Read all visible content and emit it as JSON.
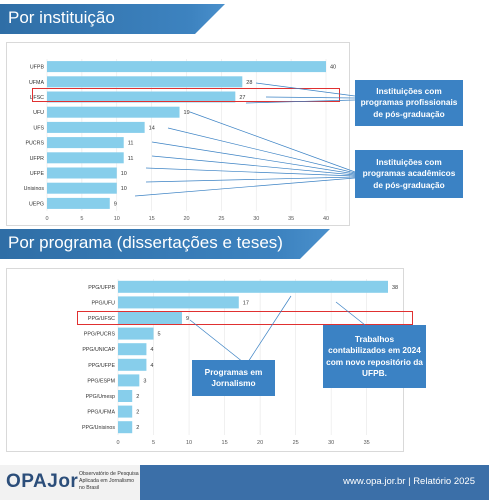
{
  "banner1": {
    "title": "Por instituição"
  },
  "banner2": {
    "title": "Por programa (dissertações e teses)"
  },
  "chart_data": [
    {
      "type": "bar",
      "orientation": "horizontal",
      "categories": [
        "UFPB",
        "UFMA",
        "UFSC",
        "UFU",
        "UFS",
        "PUCRS",
        "UFPR",
        "UFPE",
        "Unisinos",
        "UEPG"
      ],
      "values": [
        40,
        28,
        27,
        19,
        14,
        11,
        11,
        10,
        10,
        9
      ],
      "xlim": [
        0,
        40
      ],
      "xticks": [
        0,
        5,
        10,
        15,
        20,
        25,
        30,
        35,
        40
      ],
      "highlighted": "UFSC",
      "grid": true
    },
    {
      "type": "bar",
      "orientation": "horizontal",
      "categories": [
        "PPG/UFPB",
        "PPG/UFU",
        "PPG/UFSC",
        "PPG/PUCRS",
        "PPG/UNICAP",
        "PPG/UFPE",
        "PPG/ESPM",
        "PPG/Umesp",
        "PPG/UFMA",
        "PPG/Unisinos"
      ],
      "values": [
        38,
        17,
        9,
        5,
        4,
        4,
        3,
        2,
        2,
        2
      ],
      "xlim": [
        0,
        38
      ],
      "xticks": [
        0,
        5,
        10,
        15,
        20,
        25,
        30,
        35
      ],
      "highlighted": "PPG/UFSC",
      "grid": true
    }
  ],
  "callouts": {
    "professional": "Instituições com programas profissionais de pós-graduação",
    "academic": "Instituições com programas acadêmicos de pós-graduação",
    "journalism": "Programas em Jornalismo",
    "counted": "Trabalhos contabilizados em 2024 com novo repositório da UFPB."
  },
  "colors": {
    "bar": "#87ceeb",
    "banner": "#3d83c0",
    "callout": "#3b82c4",
    "highlight": "#e03030",
    "footer": "#3b6fa8"
  },
  "footer": {
    "logo": "OPAJor",
    "subtitle": "Observatório de Pesquisa Aplicada em Jornalismo no Brasil",
    "site": "www.opa.jor.br  |  Relatório 2025"
  }
}
